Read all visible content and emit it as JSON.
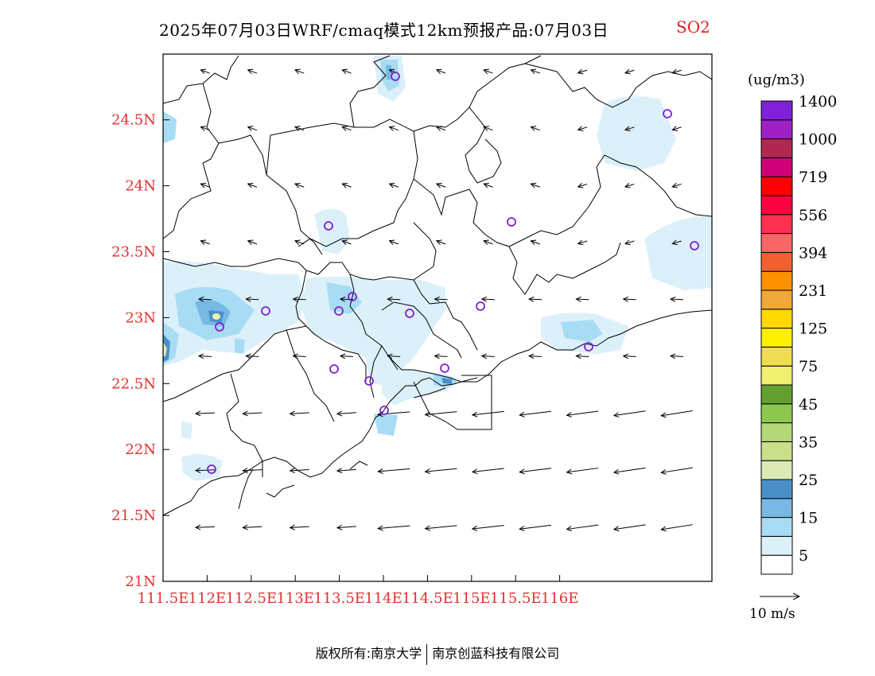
{
  "title": {
    "main": "2025年07月03日WRF/cmaq模式12km预报产品:07月03日",
    "species": "SO2"
  },
  "colorbar": {
    "unit": "(ug/m3)",
    "colors": [
      "#ffffff",
      "#dcf0fa",
      "#a8dcf5",
      "#78b8e4",
      "#4a90c8",
      "#dcebb4",
      "#c8e08a",
      "#b4d878",
      "#8cc850",
      "#64a030",
      "#f0f070",
      "#f0dc50",
      "#fff000",
      "#ffd800",
      "#f0a838",
      "#ff9000",
      "#f06030",
      "#ff6464",
      "#ff3050",
      "#ff0040",
      "#ff0000",
      "#d00078",
      "#b02850",
      "#a020c8",
      "#8020d8"
    ],
    "labels": [
      "5",
      "15",
      "25",
      "35",
      "45",
      "75",
      "125",
      "231",
      "394",
      "556",
      "719",
      "1000",
      "1400"
    ]
  },
  "wind_legend": {
    "label": "10 m/s"
  },
  "axes": {
    "x_ticks": [
      "111.5E",
      "112E",
      "112.5E",
      "113E",
      "113.5E",
      "114E",
      "114.5E",
      "115E",
      "115.5E",
      "116E"
    ],
    "y_ticks": [
      "21N",
      "21.5N",
      "22N",
      "22.5N",
      "23N",
      "23.5N",
      "24N",
      "24.5N"
    ]
  },
  "footer": {
    "left": "版权所有:南京大学",
    "right": "南京创蓝科技有限公司"
  }
}
